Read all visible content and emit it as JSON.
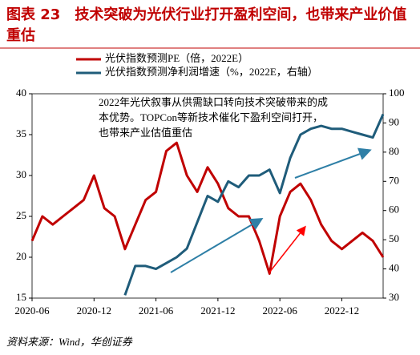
{
  "chart_data": {
    "type": "line",
    "title": "图表 23　技术突破为光伏行业打开盈利空间，也带来产业价值重估",
    "annotation": "2022年光伏叙事从供需缺口转向技术突破带来的成本优势。TOPCon等新技术催化下盈利空间打开，也带来产业估值重估",
    "source": "资料来源：Wind，华创证券",
    "x": [
      "2020-06",
      "2020-07",
      "2020-08",
      "2020-09",
      "2020-10",
      "2020-11",
      "2020-12",
      "2021-01",
      "2021-02",
      "2021-03",
      "2021-04",
      "2021-05",
      "2021-06",
      "2021-07",
      "2021-08",
      "2021-09",
      "2021-10",
      "2021-11",
      "2021-12",
      "2022-01",
      "2022-02",
      "2022-03",
      "2022-04",
      "2022-05",
      "2022-06",
      "2022-07",
      "2022-08",
      "2022-09",
      "2022-10",
      "2022-11",
      "2022-12",
      "2023-01",
      "2023-02",
      "2023-03",
      "2023-04"
    ],
    "xlim": [
      "2020-06",
      "2023-04"
    ],
    "xticks": [
      "2020-06",
      "2020-12",
      "2021-06",
      "2021-12",
      "2022-06",
      "2022-12"
    ],
    "ylim": [
      15,
      40
    ],
    "yticks": [
      15,
      20,
      25,
      30,
      35,
      40
    ],
    "y2lim": [
      30,
      100
    ],
    "y2ticks": [
      30,
      40,
      50,
      60,
      70,
      80,
      90,
      100
    ],
    "legend": "top-left",
    "series": [
      {
        "name": "光伏指数预测PE（倍，2022E）",
        "color": "#c00000",
        "values": [
          22,
          25,
          24,
          25,
          26,
          27,
          30,
          26,
          25,
          21,
          24,
          27,
          28,
          33,
          34,
          30,
          28,
          31,
          29,
          26,
          25,
          25,
          22,
          18,
          25,
          28,
          29,
          27,
          24,
          22,
          21,
          22,
          23,
          22,
          20
        ]
      },
      {
        "name": "光伏指数预测净利润增速（%，2022E，右轴）",
        "color": "#1f5c7a",
        "axis": "y2",
        "values": [
          null,
          null,
          null,
          null,
          null,
          null,
          null,
          null,
          null,
          31,
          41,
          41,
          40,
          42,
          44,
          47,
          56,
          65,
          63,
          70,
          68,
          72,
          72,
          74,
          66,
          78,
          86,
          88,
          89,
          88,
          88,
          87,
          86,
          85,
          93
        ]
      }
    ]
  }
}
